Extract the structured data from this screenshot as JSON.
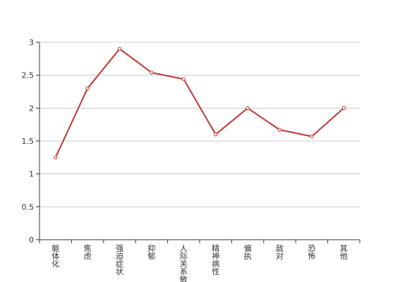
{
  "chart_data": {
    "type": "line",
    "title": "",
    "xlabel": "",
    "ylabel": "",
    "categories": [
      "躯体化",
      "焦虑",
      "强迫症状",
      "抑郁",
      "人际关系敏感",
      "精神病性",
      "偏执",
      "敌对",
      "恐怖",
      "其他"
    ],
    "series": [
      {
        "values": [
          1.25,
          2.3,
          2.9,
          2.54,
          2.44,
          1.6,
          2.0,
          1.67,
          1.57,
          2.0
        ]
      }
    ],
    "ylim": [
      0,
      3
    ],
    "yticks": [
      "0",
      "0.5",
      "1",
      "1.5",
      "2",
      "2.5",
      "3"
    ],
    "grid": true,
    "legend": "none",
    "colors": {
      "line": "#c23531",
      "grid": "#cccccc",
      "axis": "#333333"
    }
  }
}
